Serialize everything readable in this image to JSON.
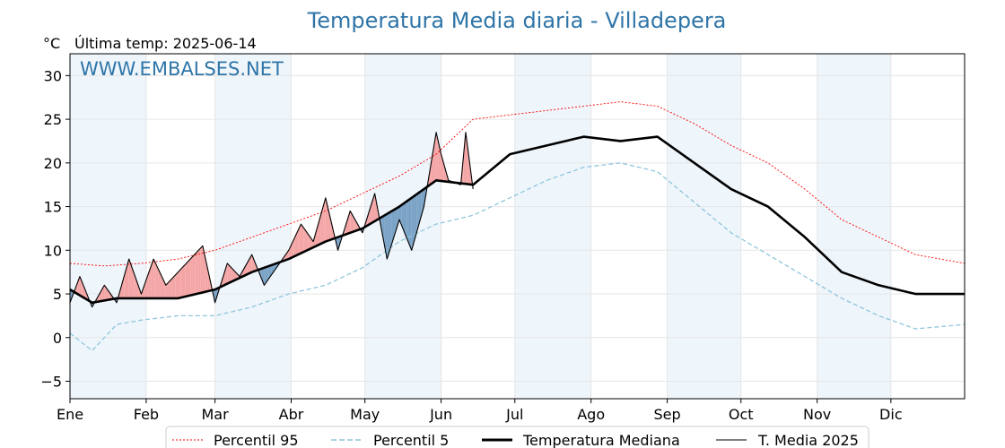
{
  "chart_data": {
    "type": "line",
    "title": "Temperatura Media diaria - Villadepera",
    "unit_label": "°C",
    "last_temp_label": "Última temp: 2025-06-14",
    "watermark": "WWW.EMBALSES.NET",
    "xlabel": "",
    "ylabel": "",
    "ylim": [
      -7,
      32.5
    ],
    "xlim": [
      1,
      365
    ],
    "y_ticks": [
      -5,
      0,
      5,
      10,
      15,
      20,
      25,
      30
    ],
    "month_labels": [
      "Ene",
      "Feb",
      "Mar",
      "Abr",
      "May",
      "Jun",
      "Jul",
      "Ago",
      "Sep",
      "Oct",
      "Nov",
      "Dic"
    ],
    "month_start_days": [
      1,
      32,
      60,
      91,
      121,
      152,
      182,
      213,
      244,
      274,
      305,
      335
    ],
    "grid": true,
    "legend_position": "bottom-center",
    "colors": {
      "p95": "#ff0000",
      "p5": "#8fc6dc",
      "median": "#000000",
      "current": "#000000",
      "above_fill": "#f4a6a6",
      "below_fill": "#7ba3c6",
      "band": "#eef5fb",
      "title": "#2f75a8"
    },
    "series": [
      {
        "name": "Percentil 95",
        "x": [
          1,
          15,
          30,
          45,
          60,
          75,
          90,
          105,
          120,
          135,
          150,
          165,
          180,
          195,
          210,
          225,
          240,
          255,
          270,
          285,
          300,
          315,
          330,
          345,
          365
        ],
        "values": [
          8.5,
          8.2,
          8.5,
          9.0,
          10.0,
          11.5,
          13.0,
          14.5,
          16.5,
          18.5,
          21.0,
          25.0,
          25.5,
          26.0,
          26.5,
          27.0,
          26.5,
          24.5,
          22.0,
          20.0,
          17.0,
          13.5,
          11.5,
          9.5,
          8.5
        ]
      },
      {
        "name": "Percentil 5",
        "x": [
          1,
          10,
          20,
          30,
          45,
          60,
          75,
          90,
          105,
          120,
          135,
          150,
          165,
          180,
          195,
          210,
          225,
          240,
          255,
          270,
          285,
          300,
          315,
          330,
          345,
          365
        ],
        "values": [
          0.5,
          -1.5,
          1.5,
          2.0,
          2.5,
          2.5,
          3.5,
          5.0,
          6.0,
          8.0,
          11.0,
          13.0,
          14.0,
          16.0,
          18.0,
          19.5,
          20.0,
          19.0,
          15.5,
          12.0,
          9.5,
          7.0,
          4.5,
          2.5,
          1.0,
          1.5
        ]
      },
      {
        "name": "Temperatura Mediana",
        "x": [
          1,
          10,
          20,
          30,
          45,
          60,
          75,
          90,
          105,
          120,
          135,
          150,
          165,
          180,
          195,
          210,
          225,
          240,
          255,
          270,
          285,
          300,
          315,
          330,
          345,
          365
        ],
        "values": [
          5.5,
          4.0,
          4.5,
          4.5,
          4.5,
          5.5,
          7.5,
          9.0,
          11.0,
          12.5,
          15.0,
          18.0,
          17.5,
          21.0,
          22.0,
          23.0,
          22.5,
          23.0,
          20.0,
          17.0,
          15.0,
          11.5,
          7.5,
          6.0,
          5.0,
          5.0
        ]
      },
      {
        "name": "T. Media 2025",
        "x": [
          1,
          5,
          10,
          15,
          20,
          25,
          30,
          35,
          40,
          45,
          50,
          55,
          60,
          65,
          70,
          75,
          80,
          85,
          90,
          95,
          100,
          105,
          110,
          115,
          120,
          125,
          130,
          135,
          140,
          145,
          150,
          152,
          155,
          160,
          162,
          165
        ],
        "values": [
          4.0,
          7.0,
          3.5,
          6.0,
          4.0,
          9.0,
          5.0,
          9.0,
          6.0,
          7.5,
          9.0,
          10.5,
          4.0,
          8.5,
          7.0,
          9.5,
          6.0,
          8.0,
          10.0,
          13.0,
          11.0,
          16.0,
          10.0,
          14.5,
          12.0,
          16.5,
          9.0,
          13.5,
          10.0,
          15.0,
          23.5,
          21.0,
          18.0,
          17.5,
          23.5,
          17.0
        ]
      }
    ]
  }
}
